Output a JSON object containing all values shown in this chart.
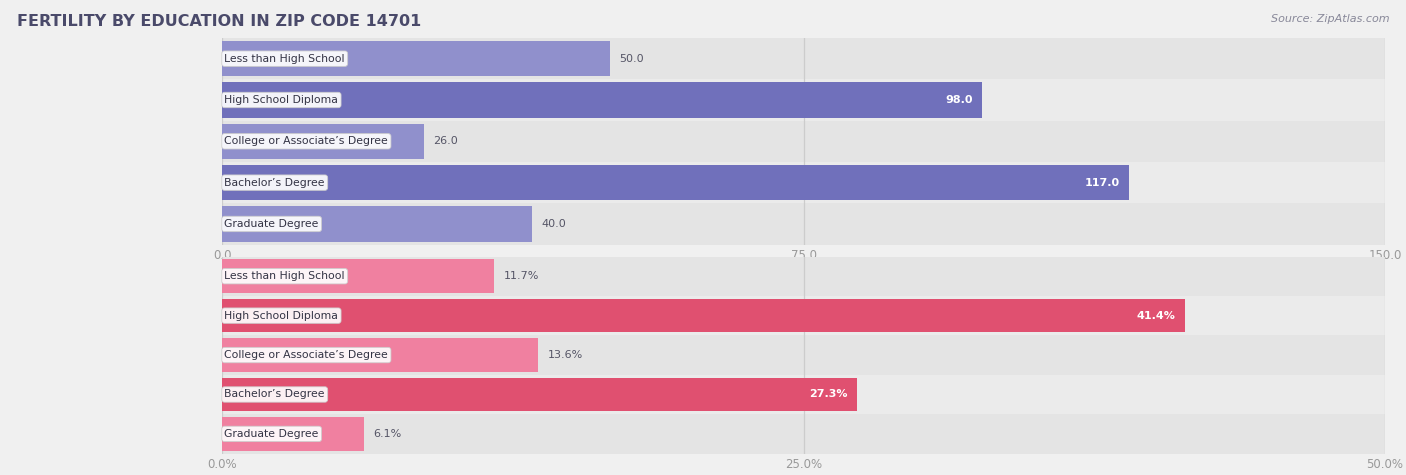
{
  "title": "FERTILITY BY EDUCATION IN ZIP CODE 14701",
  "source": "Source: ZipAtlas.com",
  "top_chart": {
    "categories": [
      "Less than High School",
      "High School Diploma",
      "College or Associate’s Degree",
      "Bachelor’s Degree",
      "Graduate Degree"
    ],
    "values": [
      50.0,
      98.0,
      26.0,
      117.0,
      40.0
    ],
    "bar_color": "#9090cc",
    "bar_color_dark": "#7070bb",
    "xlim": [
      0,
      150
    ],
    "xticks": [
      0.0,
      75.0,
      150.0
    ],
    "xtick_labels": [
      "0.0",
      "75.0",
      "150.0"
    ],
    "value_labels": [
      "50.0",
      "98.0",
      "26.0",
      "117.0",
      "40.0"
    ],
    "label_inside": [
      false,
      true,
      false,
      true,
      false
    ]
  },
  "bottom_chart": {
    "categories": [
      "Less than High School",
      "High School Diploma",
      "College or Associate’s Degree",
      "Bachelor’s Degree",
      "Graduate Degree"
    ],
    "values": [
      11.7,
      41.4,
      13.6,
      27.3,
      6.1
    ],
    "bar_color": "#f080a0",
    "bar_color_dark": "#e05070",
    "xlim": [
      0,
      50
    ],
    "xticks": [
      0.0,
      25.0,
      50.0
    ],
    "xtick_labels": [
      "0.0%",
      "25.0%",
      "50.0%"
    ],
    "value_labels": [
      "11.7%",
      "41.4%",
      "13.6%",
      "27.3%",
      "6.1%"
    ],
    "label_inside": [
      false,
      true,
      false,
      true,
      false
    ]
  },
  "bg_color": "#f0f0f0",
  "row_color_alt": "#e4e4e4",
  "row_color_norm": "#ebebeb",
  "title_color": "#4a4a6a",
  "label_fontsize": 7.8,
  "value_fontsize": 8.0,
  "title_fontsize": 11.5,
  "source_fontsize": 8.0
}
